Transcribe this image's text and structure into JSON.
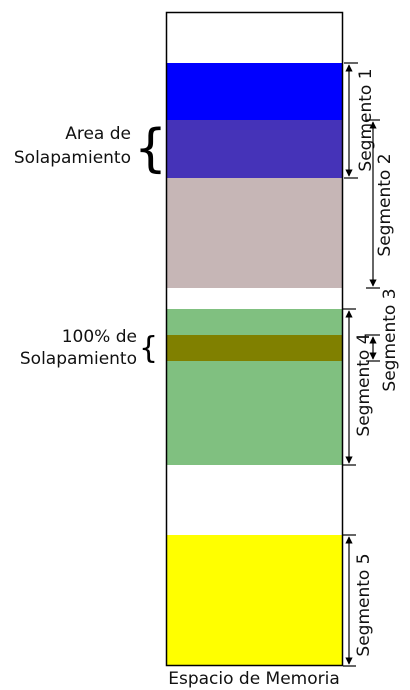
{
  "labels": {
    "area_line1": "Area de",
    "area_line2": "Solapamiento",
    "full_line1": "100% de",
    "full_line2": "Solapamiento",
    "memory": "Espacio de Memoria"
  },
  "segments": [
    {
      "name": "Segmento 1"
    },
    {
      "name": "Segmento 2"
    },
    {
      "name": "Segmento 3"
    },
    {
      "name": "Segmento 4"
    },
    {
      "name": "Segmento 5"
    }
  ],
  "colors": {
    "seg1": "#0000ff",
    "overlap_1_2": "#4533b8",
    "seg2": "#c6b6b6",
    "seg4": "#80c080",
    "overlap_3_4": "#808000",
    "seg5": "#ffff00",
    "outline": "#000000"
  },
  "glyphs": {
    "brace": "{"
  }
}
